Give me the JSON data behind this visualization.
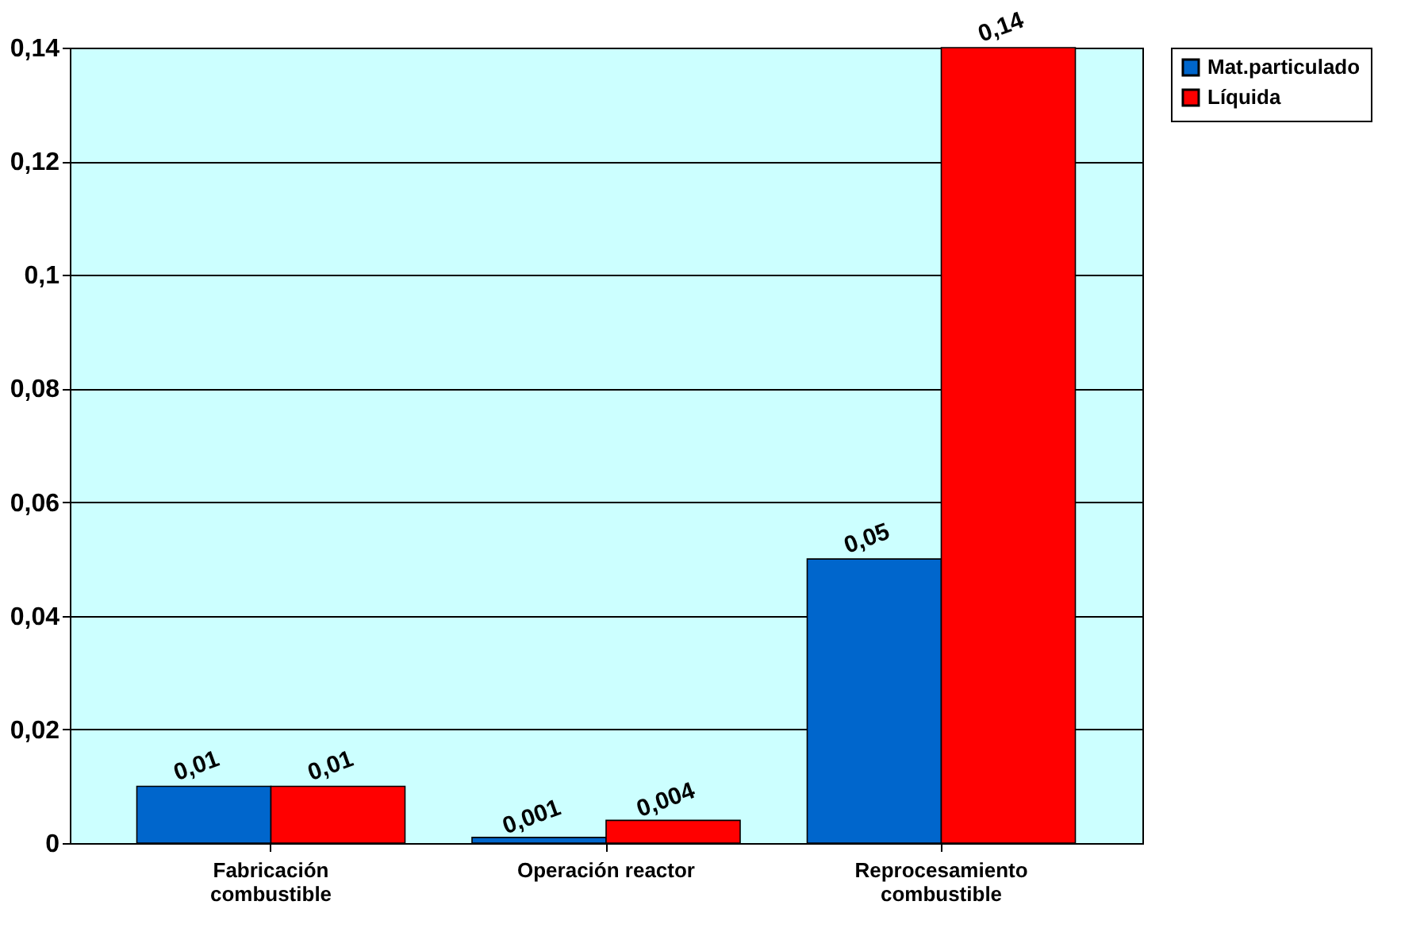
{
  "chart_data": {
    "type": "bar",
    "categories": [
      "Fabricación\ncombustible",
      "Operación reactor",
      "Reprocesamiento\ncombustible"
    ],
    "series": [
      {
        "name": "Mat.particulado",
        "color": "#0066cc",
        "values": [
          0.01,
          0.001,
          0.05
        ],
        "value_labels": [
          "0,01",
          "0,001",
          "0,05"
        ]
      },
      {
        "name": "Líquida",
        "color": "#ff0000",
        "values": [
          0.01,
          0.004,
          0.14
        ],
        "value_labels": [
          "0,01",
          "0,004",
          "0,14"
        ]
      }
    ],
    "ylim": [
      0,
      0.14
    ],
    "yticks": [
      0,
      {
        "value": 0.02,
        "label": "0,02"
      },
      {
        "value": 0.04,
        "label": "0,04"
      },
      {
        "value": 0.06,
        "label": "0,06"
      },
      {
        "value": 0.08,
        "label": "0,08"
      },
      {
        "value": 0.1,
        "label": "0,1"
      },
      {
        "value": 0.12,
        "label": "0,12"
      },
      {
        "value": 0.14,
        "label": "0,14"
      }
    ],
    "grid": "y",
    "legend": "right"
  }
}
